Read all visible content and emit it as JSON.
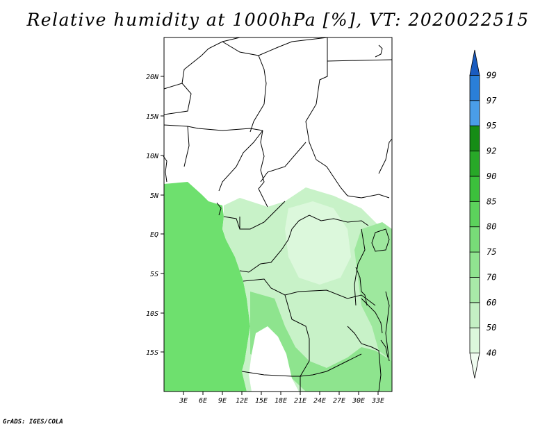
{
  "title": "Relative humidity at 1000hPa [%], VT: 2020022515",
  "credit": "GrADS: IGES/COLA",
  "lat_labels": [
    "20N",
    "15N",
    "10N",
    "5N",
    "EQ",
    "5S",
    "10S",
    "15S"
  ],
  "lon_labels": [
    "3E",
    "6E",
    "9E",
    "12E",
    "15E",
    "18E",
    "21E",
    "24E",
    "27E",
    "30E",
    "33E"
  ],
  "colorbar": {
    "levels": [
      "40",
      "50",
      "60",
      "70",
      "75",
      "80",
      "85",
      "90",
      "92",
      "95",
      "97",
      "99"
    ],
    "colors": [
      "#f0fcf0",
      "#dcf8dc",
      "#c4f0c4",
      "#a8eaa8",
      "#90e490",
      "#78dc78",
      "#5cd25c",
      "#3cc03c",
      "#28a828",
      "#168c16",
      "#4a9de8",
      "#2a7fd8",
      "#1a5cc0"
    ]
  }
}
